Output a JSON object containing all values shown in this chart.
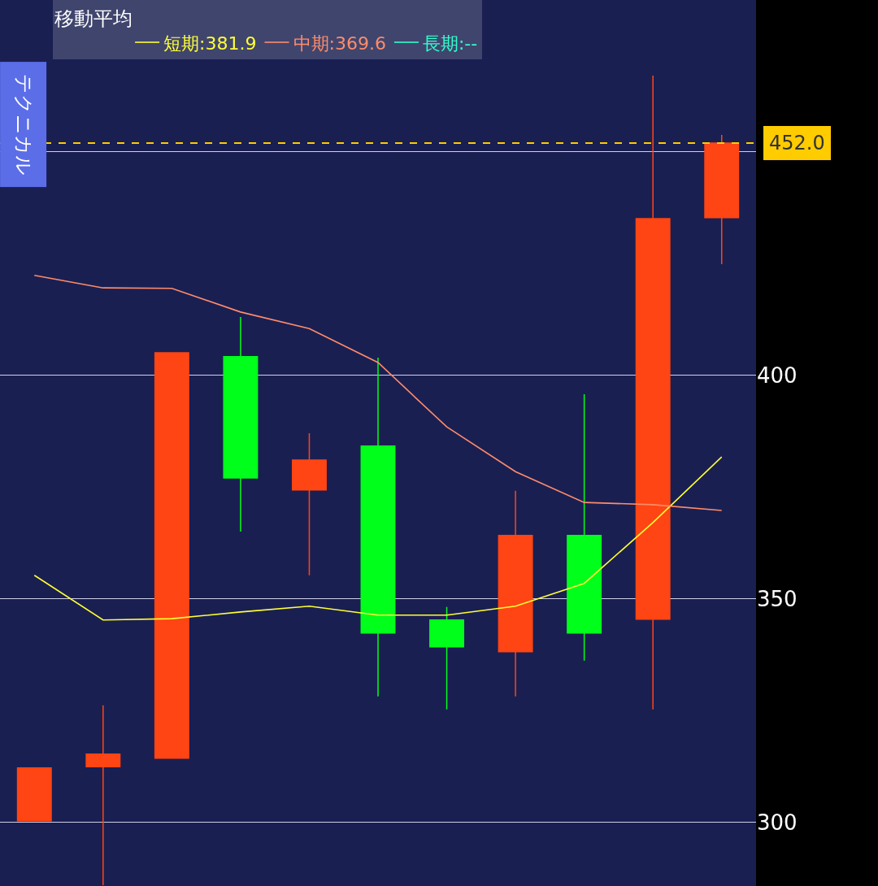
{
  "chart_data": {
    "type": "candlestick",
    "legend_title": "移動平均",
    "annotations": [
      "テクニカル"
    ],
    "categories": [
      null,
      null,
      null,
      null,
      null,
      null,
      null,
      null,
      null,
      null,
      null
    ],
    "ohlc": [
      [
        300.4,
        312.2,
        300.4,
        312.2
      ],
      [
        312.5,
        326.2,
        286,
        315.3
      ],
      [
        314.4,
        405.1,
        314.4,
        405.1
      ],
      [
        404.2,
        413.1,
        365.1,
        377.1
      ],
      [
        374.4,
        387.1,
        355.3,
        381.1
      ],
      [
        384.2,
        404.0,
        328.2,
        342.4
      ],
      [
        345.3,
        348.2,
        325.3,
        339.3
      ],
      [
        338.2,
        374.2,
        328.2,
        364.2
      ],
      [
        364.2,
        395.8,
        336.2,
        342.4
      ],
      [
        345.5,
        467.1,
        325.3,
        435.1
      ],
      [
        435.3,
        453.8,
        424.9,
        452.0
      ]
    ],
    "colors": [
      "#ff4513",
      "#ff4513",
      "#ff4513",
      "#00ff1a",
      "#ff4513",
      "#00ff1a",
      "#00ff1a",
      "#ff4513",
      "#00ff1a",
      "#ff4513",
      "#ff4513"
    ],
    "series": [
      {
        "name": "短期:381.9",
        "type": "line",
        "color": "#ffff33",
        "values": [
          355.3,
          345.3,
          345.6,
          347.1,
          348.4,
          346.4,
          346.4,
          348.4,
          353.5,
          367.1,
          381.8
        ]
      },
      {
        "name": "中期:369.6",
        "type": "line",
        "color": "#ff8c69",
        "values": [
          422.4,
          419.6,
          419.5,
          414.2,
          410.5,
          402.9,
          388.5,
          378.5,
          371.6,
          371.1,
          369.8
        ]
      },
      {
        "name": "長期:--",
        "type": "line",
        "color": "#33ffcc",
        "values": [
          null,
          null,
          null,
          null,
          null,
          null,
          null,
          null,
          null,
          null,
          null
        ]
      }
    ],
    "ref_lines": [
      {
        "axis": "y",
        "value": 452.0,
        "label": "452.0",
        "color": "#ffcc00",
        "line_style": "dashed"
      }
    ],
    "ylim": [
      285.8,
      484
    ],
    "yticks": [
      300,
      350,
      400,
      {
        "value": 450,
        "label": null
      }
    ],
    "grid": "y",
    "legend": "top left",
    "tick_labels": "y"
  }
}
